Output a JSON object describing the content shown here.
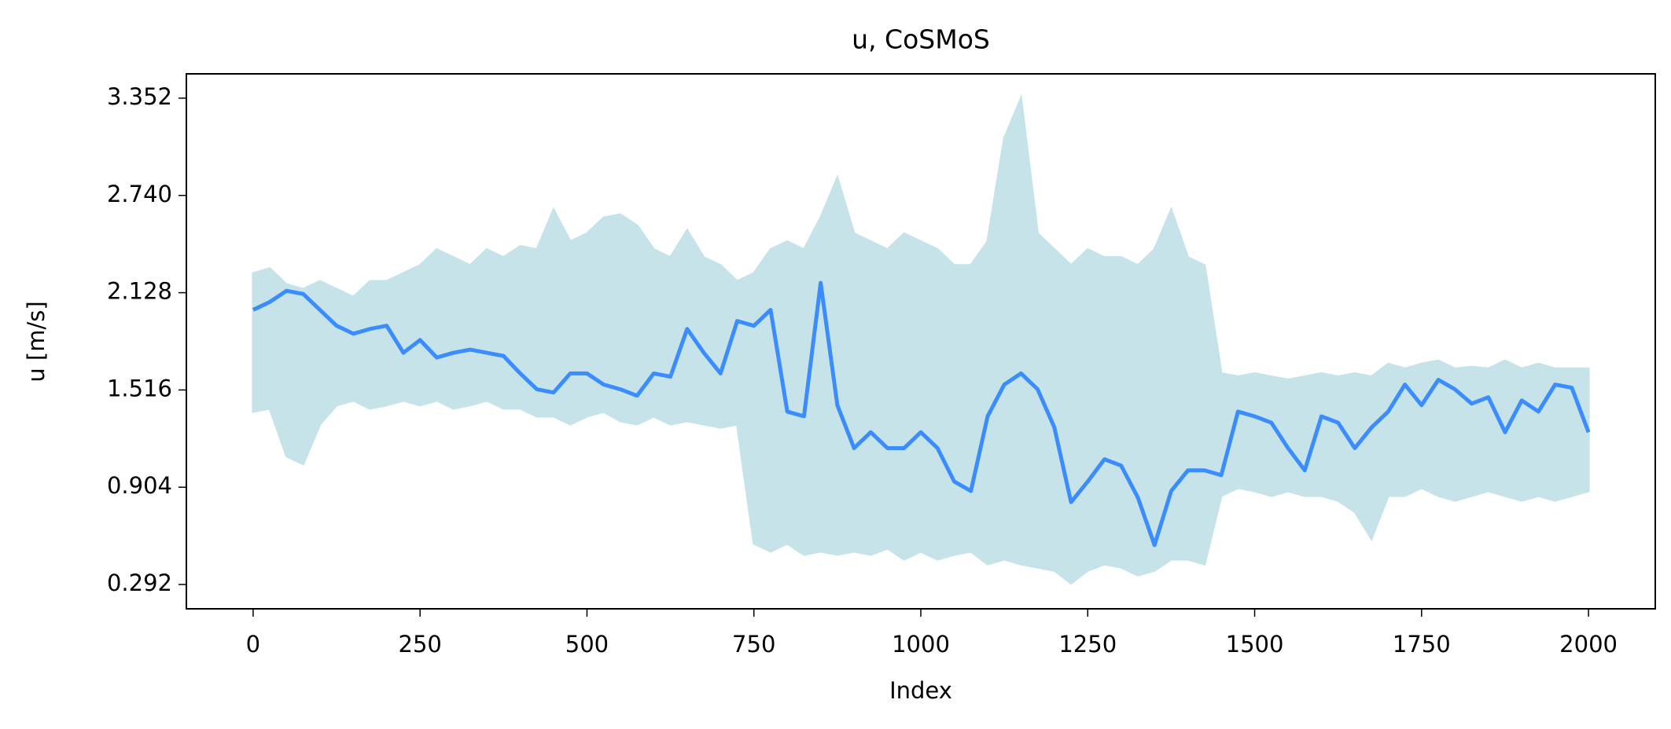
{
  "chart_data": {
    "type": "line",
    "title": "u, CoSMoS",
    "xlabel": "Index",
    "ylabel": "u [m/s]",
    "x": [
      0,
      25,
      50,
      75,
      100,
      125,
      150,
      175,
      200,
      225,
      250,
      275,
      300,
      325,
      350,
      375,
      400,
      425,
      450,
      475,
      500,
      525,
      550,
      575,
      600,
      625,
      650,
      675,
      700,
      725,
      750,
      775,
      800,
      825,
      850,
      875,
      900,
      925,
      950,
      975,
      1000,
      1025,
      1050,
      1075,
      1100,
      1125,
      1150,
      1175,
      1200,
      1225,
      1250,
      1275,
      1300,
      1325,
      1350,
      1375,
      1400,
      1425,
      1450,
      1475,
      1500,
      1525,
      1550,
      1575,
      1600,
      1625,
      1650,
      1675,
      1700,
      1725,
      1750,
      1775,
      1800,
      1825,
      1850,
      1875,
      1900,
      1925,
      1950,
      1975,
      2000
    ],
    "series": [
      {
        "color": "#3a8cff",
        "values": [
          2.02,
          2.07,
          2.14,
          2.12,
          2.02,
          1.92,
          1.87,
          1.9,
          1.92,
          1.75,
          1.83,
          1.72,
          1.75,
          1.77,
          1.75,
          1.73,
          1.62,
          1.52,
          1.5,
          1.62,
          1.62,
          1.55,
          1.52,
          1.48,
          1.62,
          1.6,
          1.9,
          1.75,
          1.62,
          1.95,
          1.92,
          2.02,
          1.38,
          1.35,
          2.19,
          1.42,
          1.15,
          1.25,
          1.15,
          1.15,
          1.25,
          1.15,
          0.94,
          0.88,
          1.35,
          1.55,
          1.62,
          1.52,
          1.28,
          0.81,
          0.94,
          1.08,
          1.04,
          0.84,
          0.54,
          0.88,
          1.01,
          1.01,
          0.98,
          1.38,
          1.35,
          1.31,
          1.15,
          1.01,
          1.35,
          1.31,
          1.15,
          1.28,
          1.38,
          1.55,
          1.42,
          1.58,
          1.52,
          1.43,
          1.47,
          1.25,
          1.45,
          1.38,
          1.55,
          1.53,
          1.25
        ]
      }
    ],
    "band": {
      "color": "#c6e3ea",
      "upper": [
        2.25,
        2.28,
        2.18,
        2.15,
        2.2,
        2.15,
        2.1,
        2.2,
        2.2,
        2.25,
        2.3,
        2.4,
        2.35,
        2.3,
        2.4,
        2.35,
        2.42,
        2.4,
        2.65,
        2.45,
        2.5,
        2.6,
        2.62,
        2.55,
        2.4,
        2.35,
        2.52,
        2.35,
        2.3,
        2.2,
        2.25,
        2.4,
        2.45,
        2.4,
        2.6,
        2.85,
        2.5,
        2.45,
        2.4,
        2.5,
        2.45,
        2.4,
        2.3,
        2.3,
        2.45,
        3.1,
        3.35,
        2.5,
        2.4,
        2.3,
        2.4,
        2.35,
        2.35,
        2.3,
        2.4,
        2.65,
        2.35,
        2.3,
        1.62,
        1.6,
        1.62,
        1.6,
        1.58,
        1.6,
        1.62,
        1.6,
        1.62,
        1.6,
        1.68,
        1.65,
        1.68,
        1.7,
        1.65,
        1.66,
        1.65,
        1.7,
        1.65,
        1.68,
        1.65,
        1.65,
        1.65
      ],
      "lower": [
        1.38,
        1.4,
        1.1,
        1.05,
        1.3,
        1.42,
        1.45,
        1.4,
        1.42,
        1.45,
        1.42,
        1.45,
        1.4,
        1.42,
        1.45,
        1.4,
        1.4,
        1.35,
        1.35,
        1.3,
        1.35,
        1.38,
        1.32,
        1.3,
        1.35,
        1.3,
        1.32,
        1.3,
        1.28,
        1.3,
        0.55,
        0.5,
        0.55,
        0.48,
        0.5,
        0.48,
        0.5,
        0.48,
        0.52,
        0.45,
        0.5,
        0.45,
        0.48,
        0.5,
        0.42,
        0.45,
        0.42,
        0.4,
        0.38,
        0.3,
        0.38,
        0.42,
        0.4,
        0.35,
        0.38,
        0.45,
        0.45,
        0.42,
        0.85,
        0.9,
        0.88,
        0.85,
        0.88,
        0.85,
        0.85,
        0.82,
        0.75,
        0.58,
        0.85,
        0.85,
        0.9,
        0.85,
        0.82,
        0.85,
        0.88,
        0.85,
        0.82,
        0.85,
        0.82,
        0.85,
        0.88
      ]
    },
    "xlim": [
      -100,
      2100
    ],
    "ylim": [
      0.139,
      3.505
    ],
    "xticks": [
      0,
      250,
      500,
      750,
      1000,
      1250,
      1500,
      1750,
      2000
    ],
    "yticks": [
      0.292,
      0.904,
      1.516,
      2.128,
      {
        "value": 2.74,
        "label": "2.740"
      },
      3.352
    ]
  }
}
